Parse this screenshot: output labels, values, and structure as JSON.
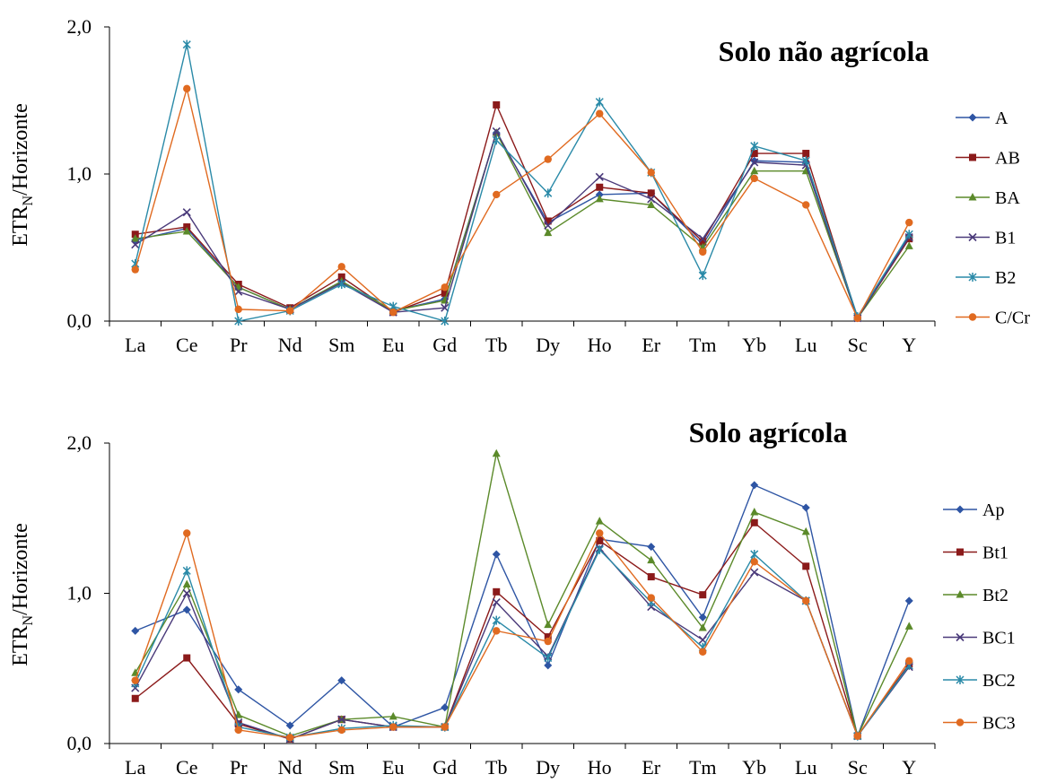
{
  "chart_data": [
    {
      "type": "line",
      "title": "Solo não agrícola",
      "ylabel_main": "ETR",
      "ylabel_sub": "N",
      "ylabel_rest": "/Horizonte",
      "ylim": [
        0,
        2
      ],
      "yticks": [
        "0,0",
        "1,0",
        "2,0"
      ],
      "categories": [
        "La",
        "Ce",
        "Pr",
        "Nd",
        "Sm",
        "Eu",
        "Gd",
        "Tb",
        "Dy",
        "Ho",
        "Er",
        "Tm",
        "Yb",
        "Lu",
        "Sc",
        "Y"
      ],
      "legend_position": "right",
      "grid": false,
      "series": [
        {
          "name": "A",
          "color": "#2e55a4",
          "marker": "diamond",
          "values": [
            0.55,
            0.63,
            0.23,
            0.08,
            0.27,
            0.07,
            0.15,
            1.28,
            0.67,
            0.86,
            0.87,
            0.52,
            1.09,
            1.08,
            0.02,
            0.58
          ]
        },
        {
          "name": "AB",
          "color": "#8b1a1a",
          "marker": "square",
          "values": [
            0.59,
            0.64,
            0.25,
            0.09,
            0.3,
            0.06,
            0.19,
            1.47,
            0.68,
            0.91,
            0.87,
            0.54,
            1.14,
            1.14,
            0.02,
            0.56
          ]
        },
        {
          "name": "BA",
          "color": "#5b8a2a",
          "marker": "triangle",
          "values": [
            0.56,
            0.61,
            0.23,
            0.08,
            0.27,
            0.07,
            0.14,
            1.28,
            0.6,
            0.83,
            0.79,
            0.5,
            1.02,
            1.02,
            0.02,
            0.51
          ]
        },
        {
          "name": "B1",
          "color": "#4a3a7a",
          "marker": "x",
          "values": [
            0.52,
            0.74,
            0.2,
            0.08,
            0.26,
            0.06,
            0.09,
            1.29,
            0.65,
            0.98,
            0.83,
            0.56,
            1.08,
            1.06,
            0.02,
            0.57
          ]
        },
        {
          "name": "B2",
          "color": "#2a8aa8",
          "marker": "star",
          "values": [
            0.39,
            1.88,
            0.0,
            0.07,
            0.25,
            0.1,
            0.0,
            1.23,
            0.87,
            1.49,
            1.01,
            0.31,
            1.19,
            1.09,
            0.03,
            0.59
          ]
        },
        {
          "name": "C/Cr",
          "color": "#e06a20",
          "marker": "circle",
          "values": [
            0.35,
            1.58,
            0.08,
            0.07,
            0.37,
            0.06,
            0.23,
            0.86,
            1.1,
            1.41,
            1.01,
            0.47,
            0.97,
            0.79,
            0.02,
            0.67
          ]
        }
      ]
    },
    {
      "type": "line",
      "title": "Solo agrícola",
      "ylabel_main": "ETR",
      "ylabel_sub": "N",
      "ylabel_rest": "/Horizonte",
      "ylim": [
        0,
        2
      ],
      "yticks": [
        "0,0",
        "1,0",
        "2,0"
      ],
      "categories": [
        "La",
        "Ce",
        "Pr",
        "Nd",
        "Sm",
        "Eu",
        "Gd",
        "Tb",
        "Dy",
        "Ho",
        "Er",
        "Tm",
        "Yb",
        "Lu",
        "Sc",
        "Y"
      ],
      "legend_position": "right",
      "grid": false,
      "series": [
        {
          "name": "Ap",
          "color": "#2e55a4",
          "marker": "diamond",
          "values": [
            0.75,
            0.89,
            0.36,
            0.12,
            0.42,
            0.11,
            0.24,
            1.26,
            0.52,
            1.36,
            1.31,
            0.84,
            1.72,
            1.57,
            0.05,
            0.95
          ]
        },
        {
          "name": "Bt1",
          "color": "#8b1a1a",
          "marker": "square",
          "values": [
            0.3,
            0.57,
            0.13,
            0.03,
            0.16,
            0.11,
            0.11,
            1.01,
            0.71,
            1.35,
            1.11,
            0.99,
            1.47,
            1.18,
            0.05,
            0.53
          ]
        },
        {
          "name": "Bt2",
          "color": "#5b8a2a",
          "marker": "triangle",
          "values": [
            0.47,
            1.06,
            0.19,
            0.05,
            0.16,
            0.18,
            0.11,
            1.93,
            0.79,
            1.48,
            1.22,
            0.77,
            1.54,
            1.41,
            0.05,
            0.78
          ]
        },
        {
          "name": "BC1",
          "color": "#4a3a7a",
          "marker": "x",
          "values": [
            0.37,
            1.0,
            0.14,
            0.03,
            0.16,
            0.11,
            0.11,
            0.94,
            0.58,
            1.3,
            0.91,
            0.69,
            1.14,
            0.95,
            0.05,
            0.51
          ]
        },
        {
          "name": "BC2",
          "color": "#2a8aa8",
          "marker": "star",
          "values": [
            0.4,
            1.15,
            0.11,
            0.04,
            0.1,
            0.12,
            0.11,
            0.82,
            0.57,
            1.29,
            0.94,
            0.64,
            1.26,
            0.95,
            0.05,
            0.52
          ]
        },
        {
          "name": "BC3",
          "color": "#e06a20",
          "marker": "circle",
          "values": [
            0.42,
            1.4,
            0.09,
            0.04,
            0.09,
            0.11,
            0.11,
            0.75,
            0.68,
            1.4,
            0.97,
            0.61,
            1.21,
            0.95,
            0.05,
            0.55
          ]
        }
      ]
    }
  ]
}
